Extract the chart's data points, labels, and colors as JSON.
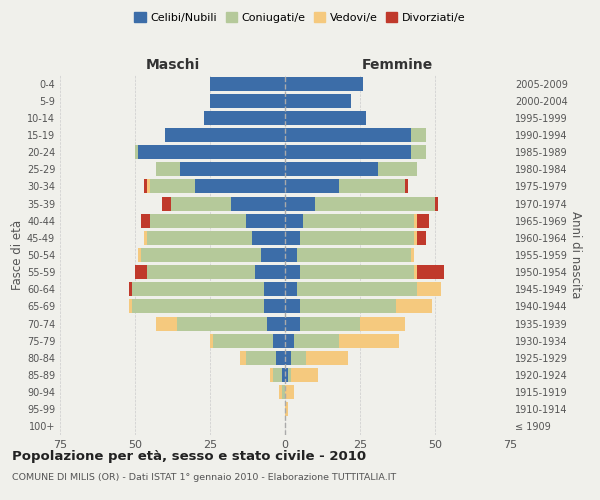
{
  "age_groups": [
    "100+",
    "95-99",
    "90-94",
    "85-89",
    "80-84",
    "75-79",
    "70-74",
    "65-69",
    "60-64",
    "55-59",
    "50-54",
    "45-49",
    "40-44",
    "35-39",
    "30-34",
    "25-29",
    "20-24",
    "15-19",
    "10-14",
    "5-9",
    "0-4"
  ],
  "birth_years": [
    "≤ 1909",
    "1910-1914",
    "1915-1919",
    "1920-1924",
    "1925-1929",
    "1930-1934",
    "1935-1939",
    "1940-1944",
    "1945-1949",
    "1950-1954",
    "1955-1959",
    "1960-1964",
    "1965-1969",
    "1970-1974",
    "1975-1979",
    "1980-1984",
    "1985-1989",
    "1990-1994",
    "1995-1999",
    "2000-2004",
    "2005-2009"
  ],
  "maschi": {
    "celibi": [
      0,
      0,
      0,
      1,
      3,
      4,
      6,
      7,
      7,
      10,
      8,
      11,
      13,
      18,
      30,
      35,
      49,
      40,
      27,
      25,
      25
    ],
    "coniugati": [
      0,
      0,
      1,
      3,
      10,
      20,
      30,
      44,
      44,
      36,
      40,
      35,
      32,
      20,
      15,
      8,
      1,
      0,
      0,
      0,
      0
    ],
    "vedovi": [
      0,
      0,
      1,
      1,
      2,
      1,
      7,
      1,
      0,
      0,
      1,
      1,
      0,
      0,
      1,
      0,
      0,
      0,
      0,
      0,
      0
    ],
    "divorziati": [
      0,
      0,
      0,
      0,
      0,
      0,
      0,
      0,
      1,
      4,
      0,
      0,
      3,
      3,
      1,
      0,
      0,
      0,
      0,
      0,
      0
    ]
  },
  "femmine": {
    "nubili": [
      0,
      0,
      0,
      1,
      2,
      3,
      5,
      5,
      4,
      5,
      4,
      5,
      6,
      10,
      18,
      31,
      42,
      42,
      27,
      22,
      26
    ],
    "coniugate": [
      0,
      0,
      0,
      1,
      5,
      15,
      20,
      32,
      40,
      38,
      38,
      38,
      37,
      40,
      22,
      13,
      5,
      5,
      0,
      0,
      0
    ],
    "vedove": [
      0,
      1,
      3,
      9,
      14,
      20,
      15,
      12,
      8,
      1,
      1,
      1,
      1,
      0,
      0,
      0,
      0,
      0,
      0,
      0,
      0
    ],
    "divorziate": [
      0,
      0,
      0,
      0,
      0,
      0,
      0,
      0,
      0,
      9,
      0,
      3,
      4,
      1,
      1,
      0,
      0,
      0,
      0,
      0,
      0
    ]
  },
  "colors": {
    "celibi": "#3c6da8",
    "coniugati": "#b5c99a",
    "vedovi": "#f5c97e",
    "divorziati": "#c0392b"
  },
  "xlim": 75,
  "title": "Popolazione per età, sesso e stato civile - 2010",
  "subtitle": "COMUNE DI MILIS (OR) - Dati ISTAT 1° gennaio 2010 - Elaborazione TUTTITALIA.IT",
  "ylabel_left": "Fasce di età",
  "ylabel_right": "Anni di nascita",
  "xlabel_left": "Maschi",
  "xlabel_right": "Femmine",
  "bg_color": "#f0f0eb",
  "legend_labels": [
    "Celibi/Nubili",
    "Coniugati/e",
    "Vedovi/e",
    "Divorziati/e"
  ]
}
